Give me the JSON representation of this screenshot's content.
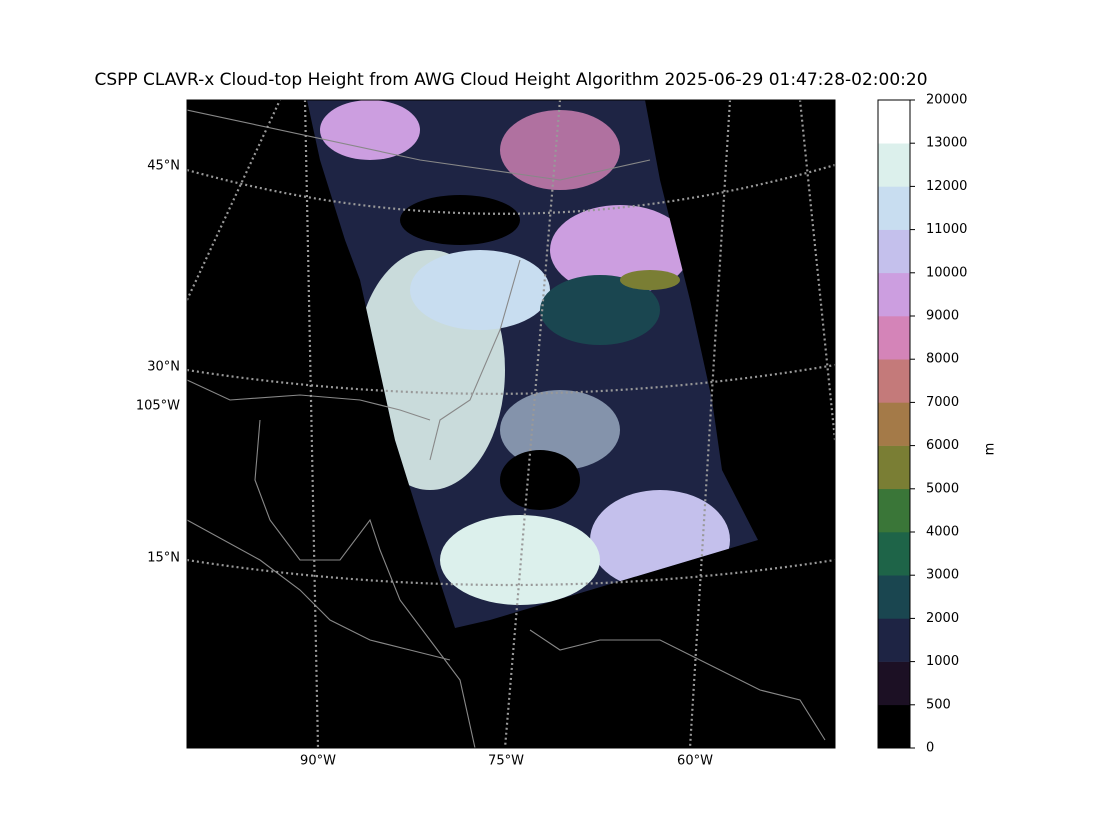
{
  "title": "CSPP CLAVR-x Cloud-top Height from AWG Cloud Height Algorithm 2025-06-29 01:47:28-02:00:20",
  "map": {
    "lat_labels": [
      "45°N",
      "30°N",
      "105°W",
      "15°N"
    ],
    "lon_labels": [
      "90°W",
      "75°W",
      "60°W"
    ]
  },
  "colorbar": {
    "label": "m",
    "ticks": [
      0,
      500,
      1000,
      2000,
      3000,
      4000,
      5000,
      6000,
      7000,
      8000,
      9000,
      10000,
      11000,
      12000,
      13000,
      20000
    ],
    "colors": [
      "#000000",
      "#1c1024",
      "#1e2444",
      "#1a4650",
      "#1e6448",
      "#3a7638",
      "#7a7e34",
      "#a47a48",
      "#c47a7a",
      "#d484b8",
      "#cc9ee0",
      "#c4c0ec",
      "#c8ddf0",
      "#dcf0ec",
      "#ffffff"
    ]
  }
}
